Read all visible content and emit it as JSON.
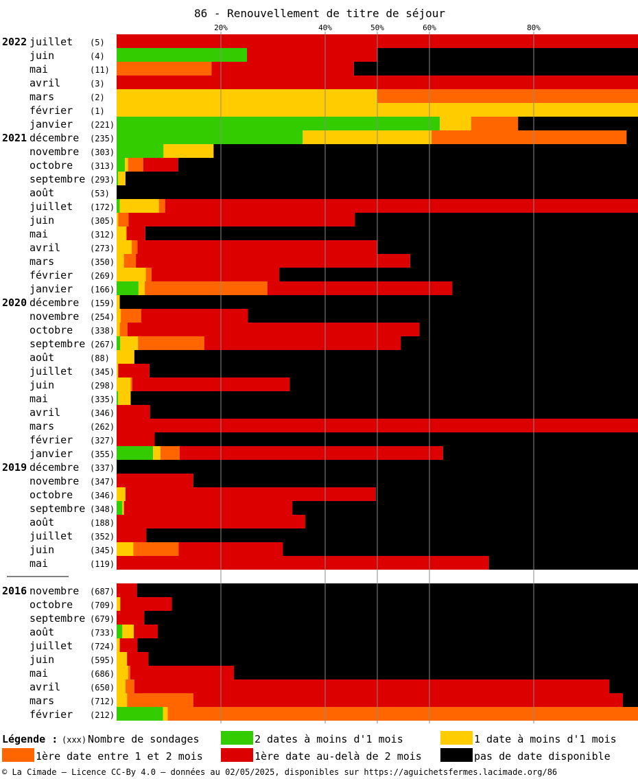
{
  "chart_data": {
    "type": "bar",
    "orientation": "horizontal-stacked-100",
    "title": "86 - Renouvellement de titre de séjour",
    "x_ticks": [
      "20%",
      "40%",
      "50%",
      "60%",
      "80%"
    ],
    "xlim": [
      0,
      100
    ],
    "grid": true,
    "legend_placement": "bottom",
    "colors": {
      "green": "#33cc00",
      "yellow": "#ffcc00",
      "orange": "#ff6600",
      "red": "#dd0000",
      "black": "#000000"
    },
    "segments": [
      {
        "key": "green",
        "color": "#33cc00"
      },
      {
        "key": "yellow",
        "color": "#ffcc00"
      },
      {
        "key": "orange",
        "color": "#ff6600"
      },
      {
        "key": "red",
        "color": "#dd0000"
      },
      {
        "key": "black",
        "color": "#000000"
      }
    ],
    "groups": [
      {
        "year": "2022",
        "rows": [
          {
            "month": "juillet",
            "count": "(5)",
            "values": [
              0,
              0,
              0,
              100,
              0
            ]
          },
          {
            "month": "juin",
            "count": "(4)",
            "values": [
              25,
              0,
              0,
              25,
              50
            ]
          },
          {
            "month": "mai",
            "count": "(11)",
            "values": [
              0,
              0,
              18.2,
              27.3,
              54.5
            ]
          },
          {
            "month": "avril",
            "count": "(3)",
            "values": [
              0,
              0,
              0,
              100,
              0
            ]
          },
          {
            "month": "mars",
            "count": "(2)",
            "values": [
              0,
              50,
              50,
              0,
              0
            ]
          },
          {
            "month": "février",
            "count": "(1)",
            "values": [
              0,
              100,
              0,
              0,
              0
            ]
          },
          {
            "month": "janvier",
            "count": "(221)",
            "values": [
              62,
              6,
              9,
              0,
              23
            ]
          }
        ]
      },
      {
        "year": "2021",
        "rows": [
          {
            "month": "décembre",
            "count": "(235)",
            "values": [
              35.7,
              24.7,
              37.4,
              0,
              2.2
            ]
          },
          {
            "month": "novembre",
            "count": "(303)",
            "values": [
              9,
              9.6,
              0,
              0,
              81.4
            ]
          },
          {
            "month": "octobre",
            "count": "(313)",
            "values": [
              1.6,
              0.6,
              2.9,
              6.7,
              88.2
            ]
          },
          {
            "month": "septembre",
            "count": "(293)",
            "values": [
              0.3,
              1.4,
              0,
              0,
              98.3
            ]
          },
          {
            "month": "août",
            "count": "(53)",
            "values": [
              0,
              0,
              0,
              0,
              100
            ]
          },
          {
            "month": "juillet",
            "count": "(172)",
            "values": [
              0.6,
              7.5,
              1.2,
              90.7,
              0
            ]
          },
          {
            "month": "juin",
            "count": "(305)",
            "values": [
              0,
              0.3,
              2,
              43.4,
              54.3
            ]
          },
          {
            "month": "mai",
            "count": "(312)",
            "values": [
              0,
              1.9,
              0,
              3.6,
              94.5
            ]
          },
          {
            "month": "avril",
            "count": "(273)",
            "values": [
              0,
              2.9,
              1.1,
              46,
              50
            ]
          },
          {
            "month": "mars",
            "count": "(350)",
            "values": [
              0,
              1.4,
              2.3,
              52.6,
              43.7
            ]
          },
          {
            "month": "février",
            "count": "(269)",
            "values": [
              0,
              5.6,
              1.1,
              24.5,
              68.8
            ]
          },
          {
            "month": "janvier",
            "count": "(166)",
            "values": [
              4.2,
              1.2,
              23.5,
              35.5,
              35.6
            ]
          }
        ]
      },
      {
        "year": "2020",
        "rows": [
          {
            "month": "décembre",
            "count": "(159)",
            "values": [
              0,
              0.6,
              0,
              0,
              99.4
            ]
          },
          {
            "month": "novembre",
            "count": "(254)",
            "values": [
              0,
              0.8,
              3.9,
              20.5,
              74.8
            ]
          },
          {
            "month": "octobre",
            "count": "(338)",
            "values": [
              0,
              0.6,
              1.5,
              56,
              41.9
            ]
          },
          {
            "month": "septembre",
            "count": "(267)",
            "values": [
              0.7,
              3.4,
              12.7,
              37.7,
              45.5
            ]
          },
          {
            "month": "août",
            "count": "(88)",
            "values": [
              0,
              3.4,
              0,
              0,
              96.6
            ]
          },
          {
            "month": "juillet",
            "count": "(345)",
            "values": [
              0,
              0.3,
              0,
              6,
              93.7
            ]
          },
          {
            "month": "juin",
            "count": "(298)",
            "values": [
              0,
              2.7,
              0.3,
              30.2,
              66.8
            ]
          },
          {
            "month": "mai",
            "count": "(335)",
            "values": [
              0.3,
              2.4,
              0,
              0,
              97.3
            ]
          },
          {
            "month": "avril",
            "count": "(346)",
            "values": [
              0,
              0,
              0,
              6.4,
              93.6
            ]
          },
          {
            "month": "mars",
            "count": "(262)",
            "values": [
              0,
              0,
              0,
              100,
              0
            ]
          },
          {
            "month": "février",
            "count": "(327)",
            "values": [
              0,
              0,
              0,
              7.3,
              92.7
            ]
          },
          {
            "month": "janvier",
            "count": "(355)",
            "values": [
              7,
              1.4,
              3.7,
              50.5,
              37.4
            ]
          }
        ]
      },
      {
        "year": "2019",
        "rows": [
          {
            "month": "décembre",
            "count": "(337)",
            "values": [
              0,
              0,
              0,
              0,
              100
            ]
          },
          {
            "month": "novembre",
            "count": "(347)",
            "values": [
              0,
              0,
              0,
              14.7,
              85.3
            ]
          },
          {
            "month": "octobre",
            "count": "(346)",
            "values": [
              0,
              1.7,
              0,
              48,
              50.3
            ]
          },
          {
            "month": "septembre",
            "count": "(348)",
            "values": [
              1.1,
              0.3,
              0,
              32.3,
              66.3
            ]
          },
          {
            "month": "août",
            "count": "(188)",
            "values": [
              0,
              0,
              0,
              36.2,
              63.8
            ]
          },
          {
            "month": "juillet",
            "count": "(352)",
            "values": [
              0,
              0,
              0,
              5.7,
              94.3
            ]
          },
          {
            "month": "juin",
            "count": "(345)",
            "values": [
              0,
              3.2,
              8.7,
              20,
              68.1
            ]
          },
          {
            "month": "mai",
            "count": "(119)",
            "values": [
              0,
              0,
              0,
              71.4,
              28.6
            ]
          }
        ]
      },
      {
        "year": "2016",
        "rows": [
          {
            "month": "novembre",
            "count": "(687)",
            "values": [
              0,
              0,
              0,
              3.9,
              96.1
            ]
          },
          {
            "month": "octobre",
            "count": "(709)",
            "values": [
              0,
              0.7,
              0,
              9.9,
              89.4
            ]
          },
          {
            "month": "septembre",
            "count": "(679)",
            "values": [
              0,
              0,
              0,
              5.3,
              94.7
            ]
          },
          {
            "month": "août",
            "count": "(733)",
            "values": [
              1.1,
              2.2,
              0,
              4.6,
              92.1
            ]
          },
          {
            "month": "juillet",
            "count": "(724)",
            "values": [
              0,
              0.6,
              0,
              3.4,
              96
            ]
          },
          {
            "month": "juin",
            "count": "(595)",
            "values": [
              0,
              2,
              0,
              4.1,
              93.9
            ]
          },
          {
            "month": "mai",
            "count": "(686)",
            "values": [
              0,
              2.2,
              0.4,
              19.9,
              77.5
            ]
          },
          {
            "month": "avril",
            "count": "(650)",
            "values": [
              0,
              1.7,
              1.7,
              91.1,
              5.5
            ]
          },
          {
            "month": "mars",
            "count": "(712)",
            "values": [
              0,
              2,
              12.7,
              82.4,
              2.9
            ]
          },
          {
            "month": "février",
            "count": "(212)",
            "values": [
              8.9,
              0.9,
              90.2,
              0,
              0
            ]
          }
        ]
      }
    ]
  },
  "legend": {
    "heading": "Légende :",
    "count_marker": "(xxx)",
    "count_label": "Nombre de sondages",
    "items": [
      {
        "color": "#33cc00",
        "label": "2 dates à moins d'1 mois"
      },
      {
        "color": "#ffcc00",
        "label": "1 date à moins d'1 mois"
      },
      {
        "color": "#ff6600",
        "label": "1ère date entre 1 et 2 mois"
      },
      {
        "color": "#dd0000",
        "label": "1ère date au-delà de 2 mois"
      },
      {
        "color": "#000000",
        "label": "pas de date disponible"
      }
    ]
  },
  "footer": "© La Cimade — Licence CC-By 4.0 — données au 02/05/2025, disponibles sur https://aguichetsfermes.lacimade.org/86"
}
